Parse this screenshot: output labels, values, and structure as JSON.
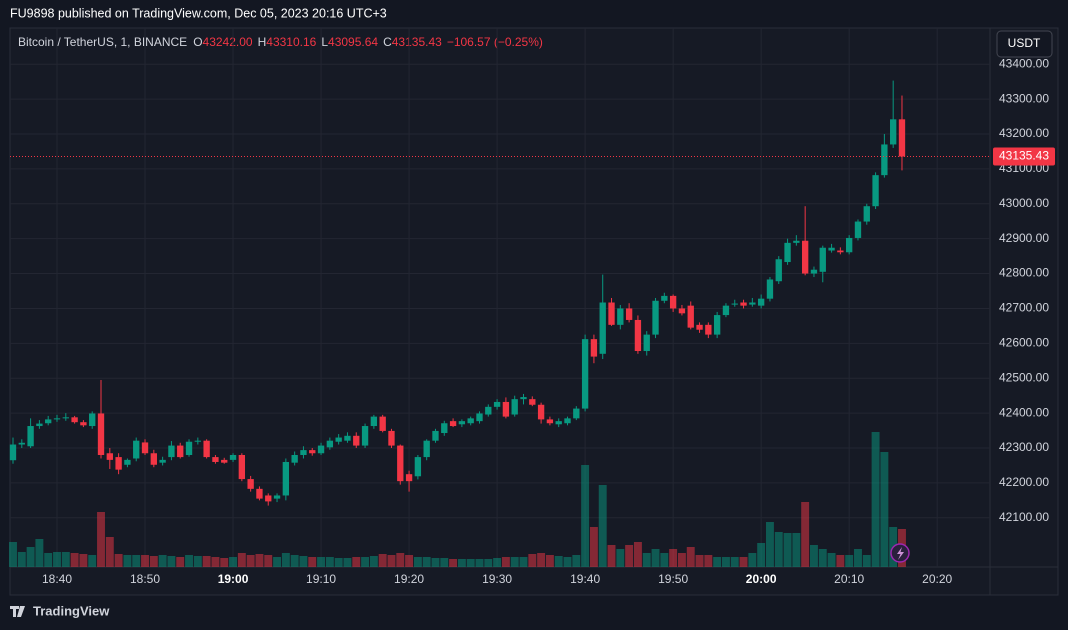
{
  "header": {
    "publisher": "FU9898 published on TradingView.com, Dec 05, 2023 20:16 UTC+3",
    "symbol": "Bitcoin / TetherUS, 1, BINANCE",
    "ohlc": [
      {
        "key": "O",
        "value": "43242.00"
      },
      {
        "key": "H",
        "value": "43310.16"
      },
      {
        "key": "L",
        "value": "43095.64"
      },
      {
        "key": "C",
        "value": "43135.43"
      }
    ],
    "change": "−106.57 (−0.25%)",
    "currency": "USDT"
  },
  "footer": {
    "brand": "TradingView"
  },
  "chart_data": {
    "type": "candlestick",
    "up_color": "#089981",
    "down_color": "#f23645",
    "grid": true,
    "xlim": [
      -0.34,
      111
    ],
    "xticks": [
      {
        "value": 5,
        "label": "18:40"
      },
      {
        "value": 15,
        "label": "18:50"
      },
      {
        "value": 25,
        "label": "19:00",
        "bold": true
      },
      {
        "value": 35,
        "label": "19:10"
      },
      {
        "value": 45,
        "label": "19:20"
      },
      {
        "value": 55,
        "label": "19:30"
      },
      {
        "value": 65,
        "label": "19:40"
      },
      {
        "value": 75,
        "label": "19:50"
      },
      {
        "value": 85,
        "label": "20:00",
        "bold": true
      },
      {
        "value": 95,
        "label": "20:10"
      },
      {
        "value": 105,
        "label": "20:20"
      }
    ],
    "ylim": [
      41959,
      43455
    ],
    "yticks": [
      {
        "value": 42100,
        "label": "42100.00"
      },
      {
        "value": 42200,
        "label": "42200.00"
      },
      {
        "value": 42300,
        "label": "42300.00"
      },
      {
        "value": 42400,
        "label": "42400.00"
      },
      {
        "value": 42500,
        "label": "42500.00"
      },
      {
        "value": 42600,
        "label": "42600.00"
      },
      {
        "value": 42700,
        "label": "42700.00"
      },
      {
        "value": 42800,
        "label": "42800.00"
      },
      {
        "value": 42900,
        "label": "42900.00"
      },
      {
        "value": 43000,
        "label": "43000.00"
      },
      {
        "value": 43100,
        "label": "43100.00"
      },
      {
        "value": 43200,
        "label": "43200.00"
      },
      {
        "value": 43300,
        "label": "43300.00"
      },
      {
        "value": 43400,
        "label": "43400.00"
      }
    ],
    "open": [
      42265,
      42310,
      42305,
      42363,
      42371,
      42382,
      42385,
      42388,
      42374,
      42363,
      42399,
      42285,
      42274,
      42252,
      42270,
      42316,
      42285,
      42258,
      42274,
      42307,
      42280,
      42318,
      42321,
      42274,
      42266,
      42266,
      42280,
      42211,
      42183,
      42164,
      42155,
      42164,
      42258,
      42280,
      42294,
      42285,
      42302,
      42318,
      42321,
      42335,
      42307,
      42363,
      42390,
      42349,
      42307,
      42225,
      42219,
      42274,
      42321,
      42343,
      42377,
      42368,
      42371,
      42377,
      42396,
      42418,
      42432,
      42396,
      42440,
      42440,
      42424,
      42382,
      42368,
      42371,
      42385,
      42413,
      42612,
      42570,
      42717,
      42653,
      42700,
      42667,
      42578,
      42625,
      42722,
      42736,
      42700,
      42708,
      42653,
      42653,
      42625,
      42681,
      42711,
      42717,
      42711,
      42708,
      42728,
      42778,
      42833,
      42888,
      42894,
      42800,
      42805,
      42866,
      42866,
      42861,
      42902,
      42949,
      42993,
      43082,
      43170,
      43242
    ],
    "high": [
      42330,
      42325,
      42385,
      42380,
      42392,
      42395,
      42400,
      42392,
      42380,
      42405,
      42495,
      42300,
      42285,
      42270,
      42330,
      42325,
      42295,
      42275,
      42320,
      42315,
      42325,
      42330,
      42325,
      42280,
      42272,
      42285,
      42285,
      42220,
      42190,
      42170,
      42170,
      42270,
      42290,
      42305,
      42300,
      42315,
      42330,
      42340,
      42345,
      42345,
      42370,
      42395,
      42395,
      42355,
      42310,
      42235,
      42280,
      42325,
      42355,
      42378,
      42385,
      42382,
      42390,
      42405,
      42425,
      42440,
      42445,
      42450,
      42455,
      42448,
      42430,
      42390,
      42385,
      42390,
      42420,
      42625,
      42625,
      42797,
      42730,
      42710,
      42715,
      42680,
      42635,
      42730,
      42745,
      42740,
      42710,
      42720,
      42660,
      42660,
      42690,
      42715,
      42725,
      42725,
      42730,
      42740,
      42790,
      42850,
      42900,
      42910,
      42993,
      42820,
      42880,
      42885,
      42875,
      42910,
      42955,
      43000,
      43090,
      43200,
      43353,
      43310.16
    ],
    "low": [
      42255,
      42300,
      42300,
      42355,
      42365,
      42375,
      42378,
      42370,
      42360,
      42355,
      42270,
      42240,
      42225,
      42245,
      42262,
      42280,
      42245,
      42250,
      42265,
      42270,
      42275,
      42310,
      42270,
      42255,
      42255,
      42260,
      42205,
      42175,
      42150,
      42135,
      42145,
      42150,
      42250,
      42270,
      42278,
      42280,
      42295,
      42310,
      42315,
      42300,
      42300,
      42355,
      42345,
      42300,
      42195,
      42175,
      42210,
      42265,
      42315,
      42335,
      42360,
      42360,
      42365,
      42370,
      42390,
      42410,
      42385,
      42390,
      42425,
      42420,
      42370,
      42365,
      42360,
      42365,
      42380,
      42405,
      42543,
      42555,
      42650,
      42640,
      42660,
      42570,
      42565,
      42615,
      42715,
      42690,
      42680,
      42640,
      42630,
      42615,
      42615,
      42675,
      42705,
      42700,
      42705,
      42700,
      42720,
      42770,
      42825,
      42880,
      42795,
      42790,
      42775,
      42860,
      42855,
      42855,
      42895,
      42940,
      42985,
      43075,
      43160,
      43095.64
    ],
    "close": [
      42310,
      42315,
      42363,
      42370,
      42382,
      42385,
      42388,
      42374,
      42365,
      42399,
      42280,
      42266,
      42238,
      42266,
      42321,
      42285,
      42252,
      42266,
      42307,
      42274,
      42318,
      42321,
      42274,
      42260,
      42258,
      42280,
      42211,
      42183,
      42155,
      42147,
      42164,
      42260,
      42280,
      42294,
      42285,
      42307,
      42321,
      42330,
      42335,
      42307,
      42363,
      42390,
      42349,
      42307,
      42205,
      42205,
      42274,
      42321,
      42349,
      42371,
      42363,
      42377,
      42385,
      42399,
      42418,
      42432,
      42390,
      42440,
      42446,
      42424,
      42382,
      42371,
      42377,
      42385,
      42413,
      42612,
      42562,
      42717,
      42653,
      42700,
      42667,
      42578,
      42625,
      42722,
      42736,
      42700,
      42686,
      42645,
      42639,
      42625,
      42681,
      42708,
      42714,
      42708,
      42717,
      42728,
      42783,
      42841,
      42888,
      42894,
      42800,
      42811,
      42874,
      42874,
      42861,
      42902,
      42949,
      42993,
      43082,
      43170,
      43242,
      43135.43
    ],
    "volume": [
      25,
      15,
      20,
      28,
      14,
      15,
      15,
      14,
      13,
      12,
      55,
      30,
      13,
      12,
      12,
      12,
      11,
      12,
      11,
      10,
      12,
      11,
      11,
      10,
      9,
      10,
      14,
      12,
      13,
      12,
      10,
      14,
      12,
      11,
      10,
      10,
      10,
      9,
      9,
      10,
      10,
      11,
      13,
      12,
      14,
      12,
      10,
      10,
      9,
      9,
      8,
      8,
      8,
      8,
      8,
      9,
      10,
      10,
      10,
      13,
      14,
      12,
      11,
      10,
      12,
      102,
      40,
      82,
      22,
      18,
      22,
      25,
      14,
      18,
      14,
      18,
      14,
      20,
      12,
      12,
      10,
      10,
      10,
      10,
      14,
      24,
      45,
      35,
      34,
      34,
      65,
      22,
      18,
      14,
      12,
      12,
      18,
      12,
      135,
      115,
      40,
      38
    ],
    "volume_lim": [
      0,
      140
    ]
  }
}
